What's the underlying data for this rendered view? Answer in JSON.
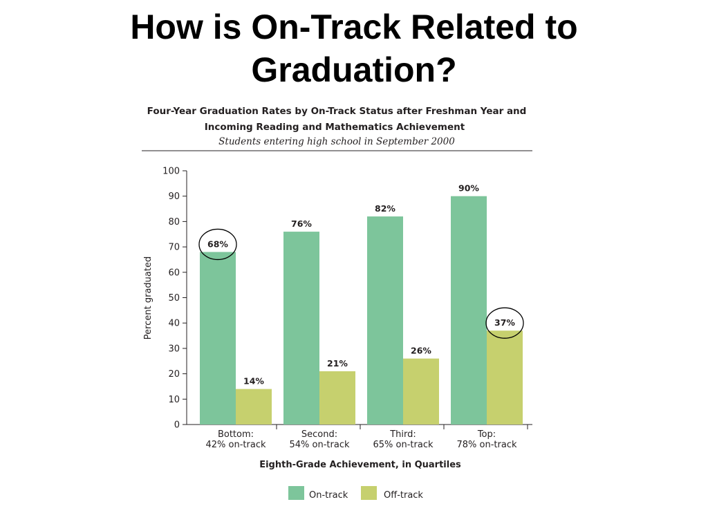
{
  "slide": {
    "title_line1": "How is On-Track Related to",
    "title_line2": "Graduation?"
  },
  "colors": {
    "on_track": "#7dc59b",
    "off_track": "#c6d06e",
    "text": "#231f20"
  },
  "chart_data": {
    "type": "bar",
    "title_line1": "Four-Year Graduation Rates by On-Track Status after Freshman Year and",
    "title_line2": "Incoming Reading and Mathematics Achievement",
    "subtitle": "Students entering high school in September 2000",
    "xlabel": "Eighth-Grade Achievement, in Quartiles",
    "ylabel": "Percent graduated",
    "ylim": [
      0,
      100
    ],
    "yticks": [
      0,
      10,
      20,
      30,
      40,
      50,
      60,
      70,
      80,
      90,
      100
    ],
    "categories": [
      {
        "line1": "Bottom:",
        "line2": "42% on-track"
      },
      {
        "line1": "Second:",
        "line2": "54% on-track"
      },
      {
        "line1": "Third:",
        "line2": "65% on-track"
      },
      {
        "line1": "Top:",
        "line2": "78% on-track"
      }
    ],
    "series": [
      {
        "name": "On-track",
        "values": [
          68,
          76,
          82,
          90
        ],
        "labels": [
          "68%",
          "76%",
          "82%",
          "90%"
        ]
      },
      {
        "name": "Off-track",
        "values": [
          14,
          21,
          26,
          37
        ],
        "labels": [
          "14%",
          "21%",
          "26%",
          "37%"
        ]
      }
    ],
    "circled": [
      {
        "series": 0,
        "category": 0
      },
      {
        "series": 1,
        "category": 3
      }
    ],
    "grid": false,
    "legend_position": "bottom"
  }
}
